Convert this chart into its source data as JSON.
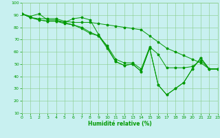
{
  "xlabel": "Humidité relative (%)",
  "bg_color": "#c8f0f0",
  "grid_color": "#88cc88",
  "line_color": "#009900",
  "marker": "*",
  "ylim": [
    10,
    100
  ],
  "xlim": [
    0,
    23
  ],
  "yticks": [
    10,
    20,
    30,
    40,
    50,
    60,
    70,
    80,
    90,
    100
  ],
  "xticks": [
    0,
    1,
    2,
    3,
    4,
    5,
    6,
    7,
    8,
    9,
    10,
    11,
    12,
    13,
    14,
    15,
    16,
    17,
    18,
    19,
    20,
    21,
    22,
    23
  ],
  "series": [
    [
      91,
      89,
      91,
      86,
      86,
      84,
      87,
      88,
      86,
      74,
      64,
      52,
      49,
      50,
      44,
      63,
      33,
      25,
      30,
      35,
      46,
      55,
      46,
      46
    ],
    [
      91,
      88,
      86,
      85,
      85,
      83,
      82,
      79,
      75,
      73,
      63,
      52,
      49,
      50,
      44,
      63,
      33,
      25,
      30,
      35,
      46,
      55,
      46,
      46
    ],
    [
      91,
      88,
      86,
      85,
      85,
      84,
      82,
      80,
      76,
      73,
      65,
      54,
      51,
      51,
      46,
      64,
      58,
      47,
      47,
      47,
      48,
      53,
      46,
      46
    ],
    [
      91,
      88,
      87,
      87,
      87,
      85,
      84,
      84,
      84,
      83,
      82,
      81,
      80,
      79,
      78,
      73,
      68,
      63,
      60,
      57,
      54,
      51,
      46,
      46
    ]
  ]
}
